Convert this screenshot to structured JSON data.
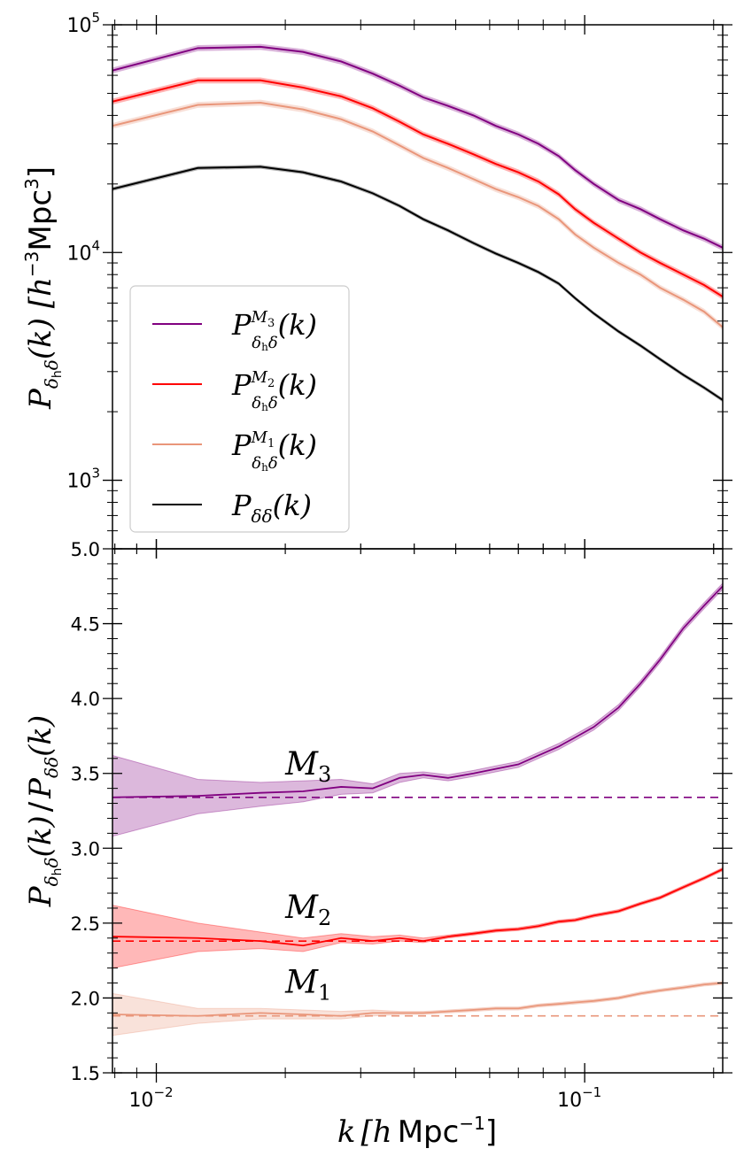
{
  "colors": {
    "M3": "#800080",
    "M2": "#ff0000",
    "M1": "#e9967a",
    "matter": "#000000",
    "axis": "#000000",
    "legend_border": "#cccccc"
  },
  "chart_data": [
    {
      "type": "line",
      "panel": "top",
      "ylabel_parts": {
        "P": "P",
        "sub_delta_h": "δ",
        "sub_h": "h",
        "sub_delta": "δ",
        "fn": "(k) [h",
        "exp_m3": "−3",
        "mpc": "Mpc",
        "exp_3": "3",
        "close": "]"
      },
      "xscale": "log",
      "yscale": "log",
      "xlim": [
        0.0079,
        0.21
      ],
      "ylim": [
        500,
        100000
      ],
      "yticks": [
        {
          "value": 1000,
          "base": "10",
          "exp": "3"
        },
        {
          "value": 10000,
          "base": "10",
          "exp": "4"
        },
        {
          "value": 100000,
          "base": "10",
          "exp": "5"
        }
      ],
      "legend": {
        "placement": "lower-left",
        "entries": [
          {
            "key": "M3",
            "P": "P",
            "sup": "M",
            "sup_sub": "3",
            "sub": "δ",
            "sub_h": "h",
            "sub_delta": "δ",
            "arg": "(k)"
          },
          {
            "key": "M2",
            "P": "P",
            "sup": "M",
            "sup_sub": "2",
            "sub": "δ",
            "sub_h": "h",
            "sub_delta": "δ",
            "arg": "(k)"
          },
          {
            "key": "M1",
            "P": "P",
            "sup": "M",
            "sup_sub": "1",
            "sub": "δ",
            "sub_h": "h",
            "sub_delta": "δ",
            "arg": "(k)"
          },
          {
            "key": "matter",
            "P": "P",
            "sup": "",
            "sup_sub": "",
            "sub": "δδ",
            "sub_h": "",
            "sub_delta": "",
            "arg": "(k)"
          }
        ]
      },
      "x": [
        0.0079,
        0.0125,
        0.0175,
        0.022,
        0.027,
        0.032,
        0.037,
        0.042,
        0.048,
        0.055,
        0.062,
        0.07,
        0.078,
        0.087,
        0.095,
        0.105,
        0.12,
        0.135,
        0.15,
        0.17,
        0.19,
        0.21
      ],
      "series": [
        {
          "key": "M3",
          "values": [
            63000,
            79000,
            80000,
            76000,
            69000,
            61000,
            54000,
            48000,
            44000,
            40000,
            36000,
            33000,
            30000,
            26500,
            23000,
            20000,
            17000,
            15500,
            14000,
            12500,
            11500,
            10500
          ],
          "band": 0.03
        },
        {
          "key": "M2",
          "values": [
            46000,
            57000,
            57000,
            53000,
            48500,
            43000,
            37500,
            33000,
            30000,
            27000,
            24500,
            22500,
            20500,
            18000,
            15500,
            13500,
            11500,
            10000,
            9000,
            8000,
            7200,
            6400
          ],
          "band": 0.03
        },
        {
          "key": "M1",
          "values": [
            36000,
            44500,
            45500,
            42500,
            38500,
            34000,
            29500,
            26000,
            23500,
            21000,
            19000,
            17500,
            16000,
            14000,
            12000,
            10500,
            9000,
            8000,
            7000,
            6200,
            5500,
            4700
          ],
          "band": 0.03
        },
        {
          "key": "matter",
          "values": [
            19000,
            23500,
            23800,
            22500,
            20500,
            18200,
            16000,
            14000,
            12500,
            11000,
            9900,
            9000,
            8200,
            7300,
            6300,
            5400,
            4500,
            3900,
            3400,
            2900,
            2550,
            2250
          ],
          "band": 0.02
        }
      ]
    },
    {
      "type": "line",
      "panel": "bottom",
      "ylabel_parts": {
        "P1": "P",
        "sub1": "δ",
        "sub1_h": "h",
        "sub1_delta": "δ",
        "fn1": "(k)",
        "slash": "/",
        "P2": "P",
        "sub2": "δδ",
        "fn2": "(k)"
      },
      "xlabel_parts": {
        "k": "k",
        "open": "[h",
        "mpc": "Mpc",
        "exp": "−1",
        "close": "]"
      },
      "xscale": "log",
      "xlim": [
        0.0079,
        0.21
      ],
      "ylim": [
        1.5,
        5.0
      ],
      "xticks": [
        {
          "value": 0.01,
          "base": "10",
          "exp": "−2"
        },
        {
          "value": 0.1,
          "base": "10",
          "exp": "−1"
        }
      ],
      "yticks": [
        "1.5",
        "2.0",
        "2.5",
        "3.0",
        "3.5",
        "4.0",
        "4.5",
        "5.0"
      ],
      "x": [
        0.0079,
        0.0125,
        0.0175,
        0.022,
        0.027,
        0.032,
        0.037,
        0.042,
        0.048,
        0.055,
        0.062,
        0.07,
        0.078,
        0.087,
        0.095,
        0.105,
        0.12,
        0.135,
        0.15,
        0.17,
        0.19,
        0.21
      ],
      "series": [
        {
          "key": "M3",
          "values": [
            3.34,
            3.35,
            3.37,
            3.38,
            3.41,
            3.4,
            3.47,
            3.49,
            3.47,
            3.5,
            3.53,
            3.56,
            3.62,
            3.68,
            3.74,
            3.81,
            3.94,
            4.1,
            4.26,
            4.47,
            4.62,
            4.75
          ],
          "band_lo": [
            3.08,
            3.23,
            3.28,
            3.31,
            3.36,
            3.37,
            3.44,
            3.47,
            3.45,
            3.48,
            3.51,
            3.54,
            3.6,
            3.66,
            3.72,
            3.79,
            3.92,
            4.08,
            4.24,
            4.45,
            4.6,
            4.73
          ],
          "band_hi": [
            3.62,
            3.46,
            3.44,
            3.45,
            3.46,
            3.43,
            3.5,
            3.51,
            3.49,
            3.52,
            3.55,
            3.58,
            3.64,
            3.7,
            3.76,
            3.83,
            3.96,
            4.12,
            4.28,
            4.49,
            4.64,
            4.77
          ],
          "bias": 3.34,
          "label_main": "M",
          "label_sub": "3"
        },
        {
          "key": "M2",
          "values": [
            2.41,
            2.4,
            2.38,
            2.35,
            2.4,
            2.38,
            2.4,
            2.38,
            2.41,
            2.43,
            2.45,
            2.46,
            2.48,
            2.51,
            2.52,
            2.55,
            2.58,
            2.63,
            2.67,
            2.74,
            2.8,
            2.86
          ],
          "band_lo": [
            2.2,
            2.31,
            2.33,
            2.31,
            2.37,
            2.36,
            2.38,
            2.37,
            2.4,
            2.42,
            2.44,
            2.45,
            2.47,
            2.5,
            2.51,
            2.54,
            2.57,
            2.62,
            2.66,
            2.73,
            2.79,
            2.85
          ],
          "band_hi": [
            2.62,
            2.5,
            2.44,
            2.4,
            2.43,
            2.41,
            2.42,
            2.4,
            2.42,
            2.44,
            2.46,
            2.47,
            2.49,
            2.52,
            2.53,
            2.56,
            2.59,
            2.64,
            2.68,
            2.75,
            2.81,
            2.87
          ],
          "bias": 2.38,
          "label_main": "M",
          "label_sub": "2"
        },
        {
          "key": "M1",
          "values": [
            1.89,
            1.88,
            1.9,
            1.89,
            1.88,
            1.9,
            1.9,
            1.9,
            1.91,
            1.92,
            1.93,
            1.93,
            1.95,
            1.96,
            1.97,
            1.98,
            2.0,
            2.03,
            2.05,
            2.07,
            2.09,
            2.1
          ],
          "band_lo": [
            1.75,
            1.83,
            1.86,
            1.86,
            1.86,
            1.88,
            1.89,
            1.89,
            1.9,
            1.91,
            1.92,
            1.92,
            1.94,
            1.95,
            1.96,
            1.97,
            1.99,
            2.02,
            2.04,
            2.06,
            2.08,
            2.09
          ],
          "band_hi": [
            2.03,
            1.93,
            1.93,
            1.92,
            1.91,
            1.92,
            1.91,
            1.91,
            1.92,
            1.93,
            1.94,
            1.94,
            1.96,
            1.97,
            1.98,
            1.99,
            2.01,
            2.04,
            2.06,
            2.08,
            2.1,
            2.11
          ],
          "bias": 1.88,
          "label_main": "M",
          "label_sub": "1"
        }
      ]
    }
  ]
}
